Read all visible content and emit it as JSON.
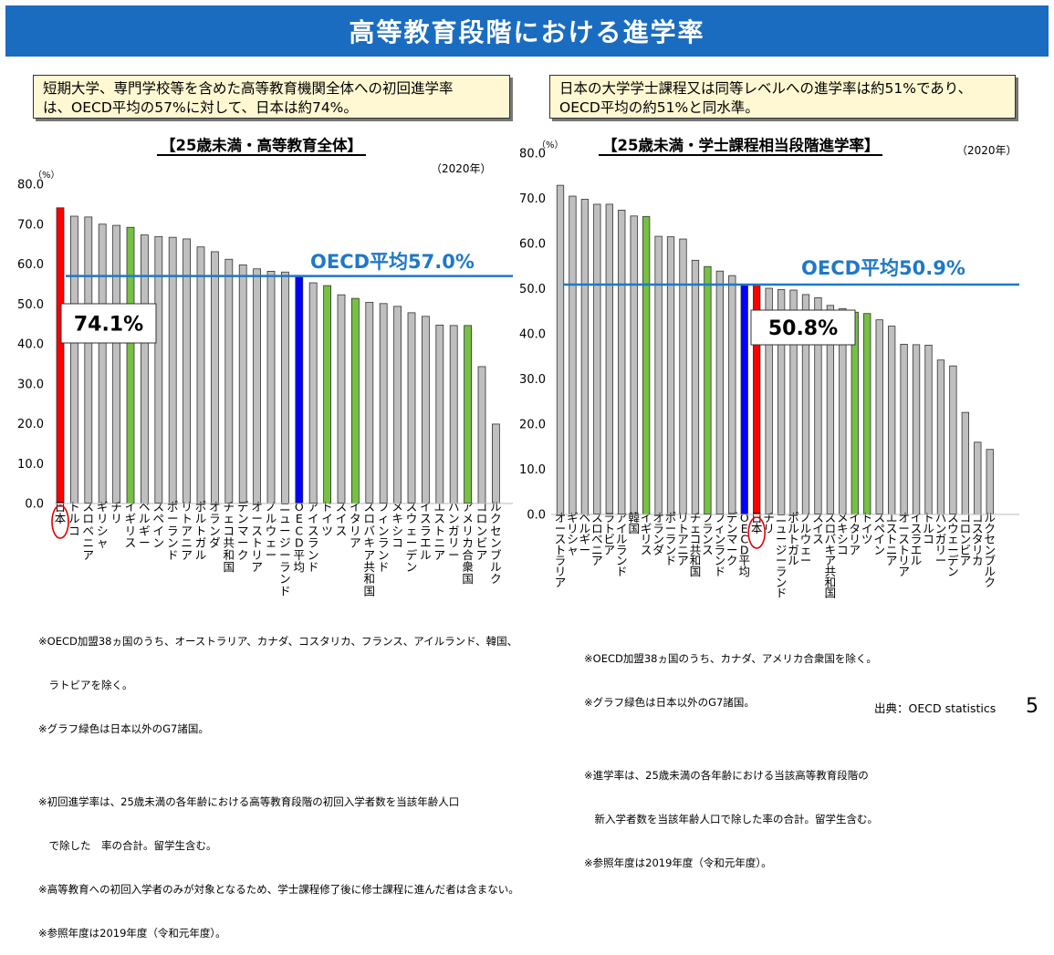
{
  "header": {
    "title": "高等教育段階における進学率"
  },
  "notes": {
    "left": [
      "短期大学、専門学校等を含めた高等教育機関全体への初回進学率",
      "は、OECD平均の57%に対して、日本は約74%。"
    ],
    "right": [
      "日本の大学学士課程又は同等レベルへの進学率は約51%であり、",
      "OECD平均の約51%と同水準。"
    ]
  },
  "footnotes": {
    "left": [
      "※OECD加盟38ヵ国のうち、オーストラリア、カナダ、コスタリカ、フランス、アイルランド、韓国、",
      "　ラトビアを除く。",
      "※グラフ緑色は日本以外のG7諸国。",
      "",
      "※初回進学率は、25歳未満の各年齢における高等教育段階の初回入学者数を当該年齢人口",
      "　で除した　率の合計。留学生含む。",
      "※高等教育への初回入学者のみが対象となるため、学士課程修了後に修士課程に進んだ者は含まない。",
      "※参照年度は2019年度（令和元年度）。"
    ],
    "right": [
      "※OECD加盟38ヵ国のうち、カナダ、アメリカ合衆国を除く。",
      "※グラフ緑色は日本以外のG7諸国。",
      "",
      "※進学率は、25歳未満の各年齢における当該高等教育段階の",
      "　新入学者数を当該年齢人口で除した率の合計。留学生含む。",
      "※参照年度は2019年度（令和元年度）。"
    ]
  },
  "source": "出典：OECD statistics",
  "page_number": "5",
  "colors": {
    "japan": "#ff0000",
    "oecd": "#0000ff",
    "g7": "#76c043",
    "other": "#bfbfbf",
    "avg_line": "#1f78c8",
    "banner": "#1a6cc0"
  },
  "chart_data": [
    {
      "type": "bar",
      "title": "【25歳未満・高等教育全体】",
      "year_label": "（2020年）",
      "unit": "（%）",
      "ylim": [
        0,
        80
      ],
      "yticks": [
        "0.0",
        "10.0",
        "20.0",
        "30.0",
        "40.0",
        "50.0",
        "60.0",
        "70.0",
        "80.0"
      ],
      "average": {
        "value": 57.0,
        "label": "OECD平均57.0%"
      },
      "highlight": {
        "label": "74.1%"
      },
      "categories": [
        "日本",
        "トルコ",
        "スロベニア",
        "ギリシャ",
        "チリ",
        "イギリス",
        "ベルギー",
        "スペイン",
        "ポーランド",
        "リトアニア",
        "ポルトガル",
        "オランダ",
        "チェコ共和国",
        "デンマーク",
        "オーストリア",
        "ノルウェー",
        "ニュージーランド",
        "OECD平均",
        "アイスランド",
        "ドイツ",
        "スイス",
        "イタリア",
        "スロバキア共和国",
        "フィンランド",
        "メキシコ",
        "スウェーデン",
        "イスラエル",
        "エストニア",
        "ハンガリー",
        "アメリカ合衆国",
        "コロンビア",
        "ルクセンブルク"
      ],
      "values": [
        74.1,
        72.0,
        71.8,
        70.0,
        69.7,
        69.2,
        67.3,
        66.9,
        66.7,
        66.3,
        64.3,
        63.1,
        61.2,
        59.8,
        58.8,
        58.2,
        58.0,
        57.0,
        55.3,
        54.6,
        52.3,
        51.4,
        50.4,
        50.1,
        49.4,
        47.8,
        46.9,
        44.7,
        44.6,
        44.6,
        34.3,
        19.9
      ],
      "kinds": [
        "japan",
        "other",
        "other",
        "other",
        "other",
        "g7",
        "other",
        "other",
        "other",
        "other",
        "other",
        "other",
        "other",
        "other",
        "other",
        "other",
        "other",
        "oecd",
        "other",
        "g7",
        "other",
        "g7",
        "other",
        "other",
        "other",
        "other",
        "other",
        "other",
        "other",
        "g7",
        "other",
        "other"
      ]
    },
    {
      "type": "bar",
      "title": "【25歳未満・学士課程相当段階進学率】",
      "year_label": "（2020年）",
      "unit": "（%）",
      "ylim": [
        0,
        80
      ],
      "yticks": [
        "0.0",
        "10.0",
        "20.0",
        "30.0",
        "40.0",
        "50.0",
        "60.0",
        "70.0",
        "80.0"
      ],
      "average": {
        "value": 50.9,
        "label": "OECD平均50.9%"
      },
      "highlight": {
        "label": "50.8%"
      },
      "categories": [
        "オーストラリア",
        "ギリシャ",
        "ベルギー",
        "スロベニア",
        "ラトビア",
        "アイルランド",
        "韓国",
        "イギリス",
        "オランダ",
        "ポーランド",
        "リトアニア",
        "チェコ共和国",
        "フランス",
        "フィンランド",
        "デンマーク",
        "OECD平均",
        "日本",
        "チリ",
        "ニュージーランド",
        "ポルトガル",
        "ノルウェー",
        "スイス",
        "スロバキア共和国",
        "メキシコ",
        "イタリア",
        "ドイツ",
        "スペイン",
        "エストニア",
        "オーストリア",
        "イスラエル",
        "トルコ",
        "ハンガリー",
        "スウェーデン",
        "コロンビア",
        "コスタリカ",
        "ルクセンブルク"
      ],
      "values": [
        72.9,
        70.5,
        69.8,
        68.7,
        68.7,
        67.4,
        66.1,
        66.0,
        61.6,
        61.5,
        61.0,
        56.3,
        54.9,
        53.9,
        52.9,
        50.9,
        50.8,
        50.1,
        49.8,
        49.7,
        48.7,
        48.0,
        46.3,
        45.6,
        44.8,
        44.5,
        43.1,
        41.7,
        37.7,
        37.6,
        37.5,
        34.2,
        32.9,
        22.6,
        16.0,
        14.4
      ],
      "kinds": [
        "other",
        "other",
        "other",
        "other",
        "other",
        "other",
        "other",
        "g7",
        "other",
        "other",
        "other",
        "other",
        "g7",
        "other",
        "other",
        "oecd",
        "japan",
        "other",
        "other",
        "other",
        "other",
        "other",
        "other",
        "other",
        "g7",
        "g7",
        "other",
        "other",
        "other",
        "other",
        "other",
        "other",
        "other",
        "other",
        "other",
        "other"
      ]
    }
  ]
}
